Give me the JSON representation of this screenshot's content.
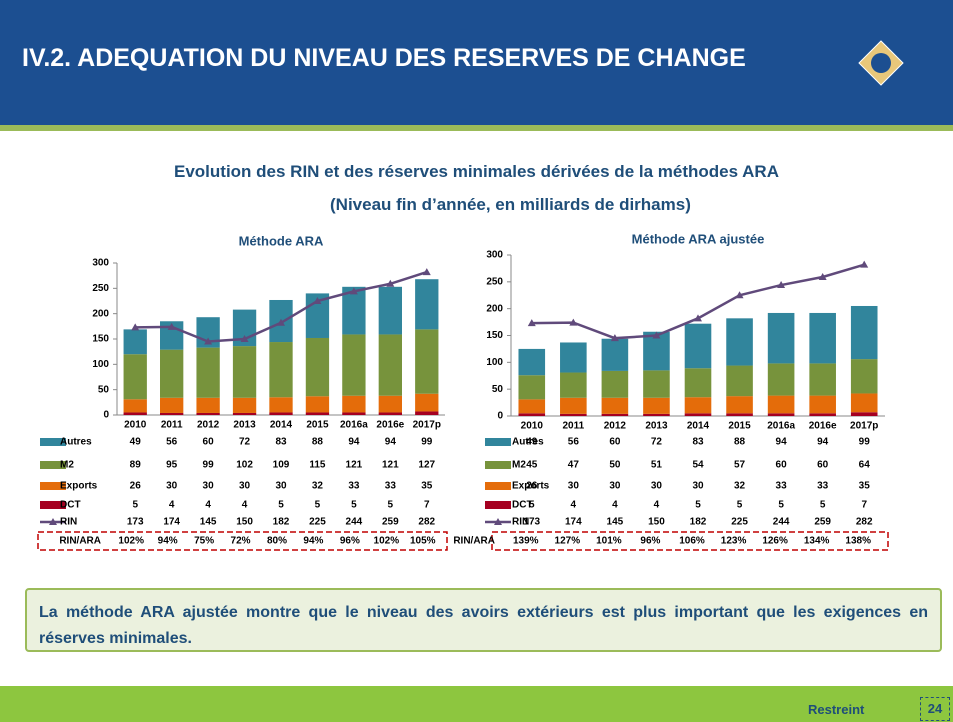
{
  "header": {
    "title": "IV.2. ADEQUATION DU NIVEAU DES RESERVES DE CHANGE"
  },
  "subtitle": [
    "Evolution des RIN et des réserves minimales dérivées de la méthodes ARA",
    "(Niveau fin d’année, en milliards de dirhams)"
  ],
  "chart_data": [
    {
      "type": "bar",
      "stacked": true,
      "title": "Méthode ARA",
      "categories": [
        "2010",
        "2011",
        "2012",
        "2013",
        "2014",
        "2015",
        "2016a",
        "2016e",
        "2017p"
      ],
      "ylim": [
        0,
        300
      ],
      "yticks": [
        0,
        50,
        100,
        150,
        200,
        250,
        300
      ],
      "series": [
        {
          "name": "Autres",
          "color": "#31859c",
          "values": [
            49,
            56,
            60,
            72,
            83,
            88,
            94,
            94,
            99
          ]
        },
        {
          "name": "M2",
          "color": "#77933c",
          "values": [
            89,
            95,
            99,
            102,
            109,
            115,
            121,
            121,
            127
          ]
        },
        {
          "name": "Exports",
          "color": "#e46c0a",
          "values": [
            26,
            30,
            30,
            30,
            30,
            32,
            33,
            33,
            35
          ]
        },
        {
          "name": "DCT",
          "color": "#a50021",
          "values": [
            5,
            4,
            4,
            4,
            5,
            5,
            5,
            5,
            7
          ]
        },
        {
          "name": "RIN",
          "type": "line",
          "color": "#604a7b",
          "values": [
            173,
            174,
            145,
            150,
            182,
            225,
            244,
            259,
            282
          ]
        }
      ],
      "ratio": {
        "name": "RIN/ARA",
        "values": [
          102,
          94,
          75,
          72,
          80,
          94,
          96,
          102,
          105
        ],
        "value_labels": [
          "102%",
          "94%",
          "75%",
          "72%",
          "80%",
          "94%",
          "96%",
          "102%",
          "105%"
        ]
      }
    },
    {
      "type": "bar",
      "stacked": true,
      "title": "Méthode ARA ajustée",
      "categories": [
        "2010",
        "2011",
        "2012",
        "2013",
        "2014",
        "2015",
        "2016a",
        "2016e",
        "2017p"
      ],
      "ylim": [
        0,
        300
      ],
      "yticks": [
        0,
        50,
        100,
        150,
        200,
        250,
        300
      ],
      "series": [
        {
          "name": "Autres",
          "color": "#31859c",
          "values": [
            49,
            56,
            60,
            72,
            83,
            88,
            94,
            94,
            99
          ]
        },
        {
          "name": "M2",
          "color": "#77933c",
          "values": [
            45,
            47,
            50,
            51,
            54,
            57,
            60,
            60,
            64
          ]
        },
        {
          "name": "Exports",
          "color": "#e46c0a",
          "values": [
            26,
            30,
            30,
            30,
            30,
            32,
            33,
            33,
            35
          ]
        },
        {
          "name": "DCT",
          "color": "#a50021",
          "values": [
            5,
            4,
            4,
            4,
            5,
            5,
            5,
            5,
            7
          ]
        },
        {
          "name": "RIN",
          "type": "line",
          "color": "#604a7b",
          "values": [
            173,
            174,
            145,
            150,
            182,
            225,
            244,
            259,
            282
          ]
        }
      ],
      "ratio": {
        "name": "RIN/ARA",
        "values": [
          139,
          127,
          101,
          96,
          106,
          123,
          126,
          134,
          138
        ],
        "value_labels": [
          "139%",
          "127%",
          "101%",
          "96%",
          "106%",
          "123%",
          "126%",
          "134%",
          "138%"
        ]
      }
    }
  ],
  "conclusion": "La méthode ARA ajustée montre que le niveau des avoirs extérieurs est plus important que les exigences en réserves minimales.",
  "footer": {
    "label": "Restreint",
    "page": "24"
  }
}
